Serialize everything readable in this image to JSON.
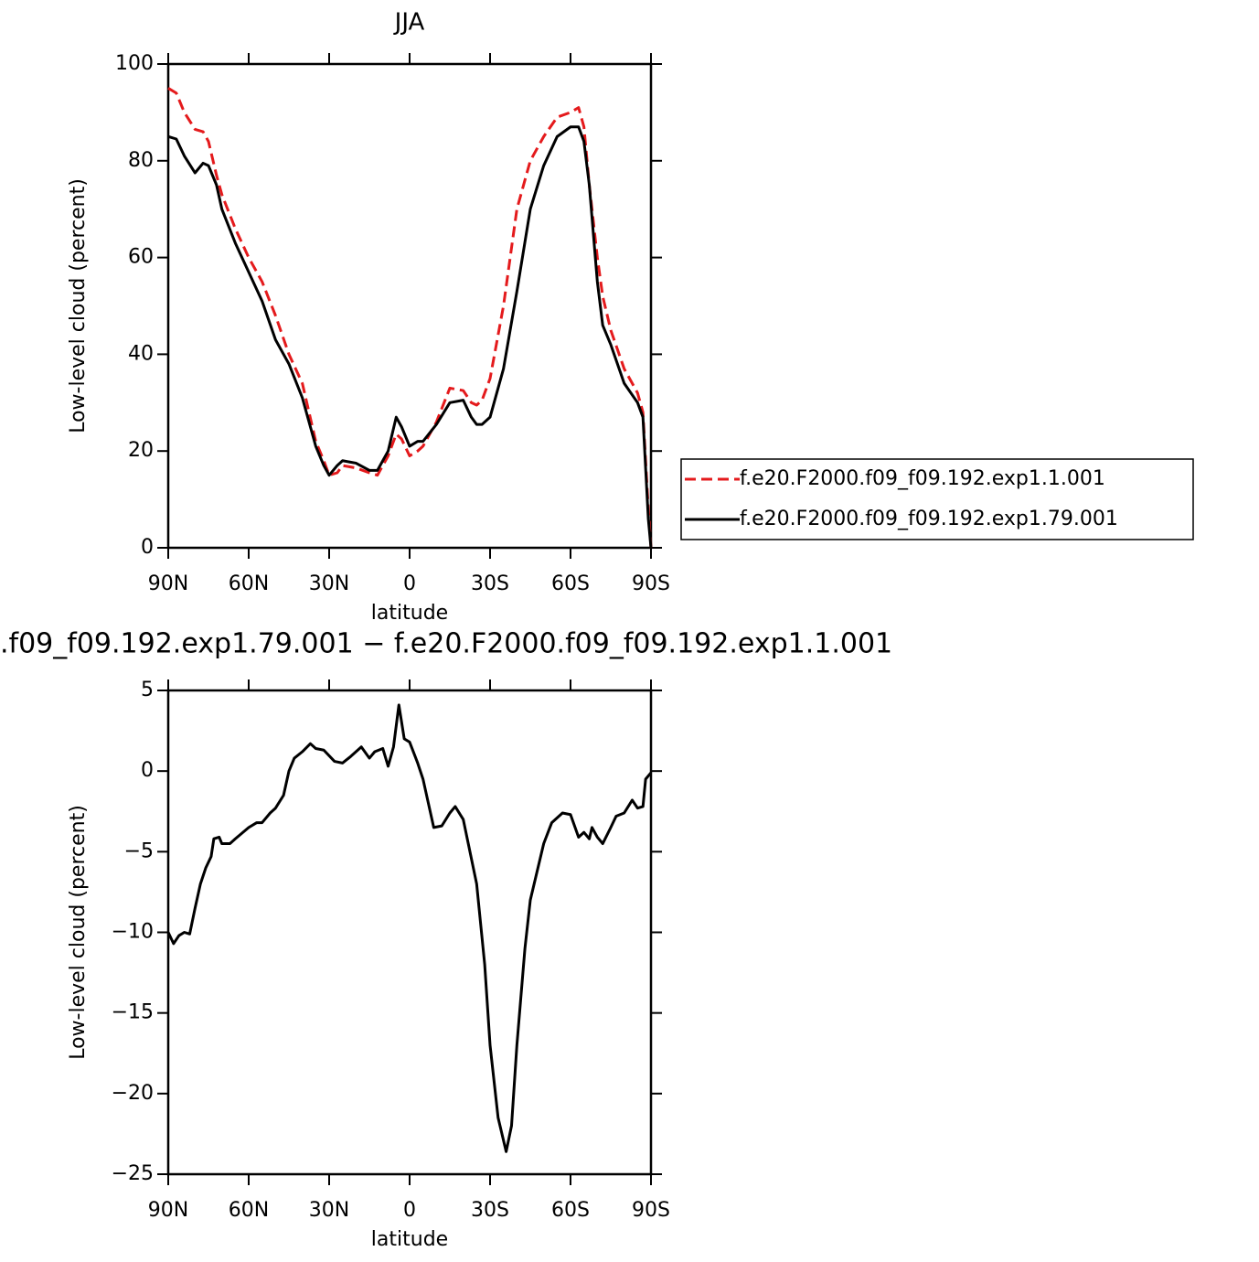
{
  "chart_data": [
    {
      "type": "line",
      "title": "JJA",
      "xlabel": "latitude",
      "ylabel": "Low-level cloud (percent)",
      "x": [
        90,
        87,
        84,
        80,
        77,
        75,
        72,
        70,
        65,
        60,
        55,
        50,
        45,
        40,
        35,
        32,
        30,
        27,
        25,
        20,
        15,
        12,
        8,
        5,
        3,
        0,
        -3,
        -5,
        -10,
        -15,
        -20,
        -23,
        -25,
        -27,
        -30,
        -35,
        -40,
        -45,
        -50,
        -55,
        -60,
        -63,
        -65,
        -67,
        -70,
        -72,
        -75,
        -80,
        -85,
        -87,
        -89,
        -90
      ],
      "series": [
        {
          "name": "f.e20.F2000.f09_f09.192.exp1.1.001",
          "color": "#e41a1c",
          "line_style": "dashed",
          "values": [
            95,
            94,
            90,
            86.5,
            86,
            84,
            77,
            73,
            66,
            60,
            55,
            48,
            40,
            34,
            22,
            18,
            15,
            15.5,
            17,
            16.5,
            15.5,
            15,
            19,
            23.5,
            22.5,
            19,
            20,
            21,
            26,
            33,
            32.5,
            30,
            29.5,
            30.5,
            35,
            50,
            70,
            80,
            85,
            89,
            90,
            91,
            87,
            75,
            60,
            52,
            45,
            37,
            32,
            28,
            8,
            0
          ]
        },
        {
          "name": "f.e20.F2000.f09_f09.192.exp1.79.001",
          "color": "#000000",
          "line_style": "solid",
          "values": [
            85,
            84.5,
            81,
            77.5,
            79.5,
            79,
            75,
            70,
            63,
            57,
            51,
            43,
            38,
            31,
            21,
            17,
            15,
            17,
            18,
            17.5,
            16,
            16,
            20,
            27,
            25,
            21,
            22,
            22,
            25.5,
            30,
            30.5,
            27,
            25.5,
            25.5,
            27,
            37,
            53,
            70,
            79,
            85,
            87,
            87,
            84,
            75,
            55,
            46,
            42,
            34,
            30,
            27,
            6,
            0
          ]
        }
      ],
      "xlim": [
        90,
        -90
      ],
      "xticks": [
        {
          "value": 90,
          "label": "90N"
        },
        {
          "value": 60,
          "label": "60N"
        },
        {
          "value": 30,
          "label": "30N"
        },
        0,
        {
          "value": -30,
          "label": "30S"
        },
        {
          "value": -60,
          "label": "60S"
        },
        {
          "value": -90,
          "label": "90S"
        }
      ],
      "ylim": [
        0,
        100
      ],
      "yticks": [
        0,
        20,
        40,
        60,
        80,
        100
      ],
      "legend": "outside-right"
    },
    {
      "type": "line",
      "title": ".f09_f09.192.exp1.79.001 − f.e20.F2000.f09_f09.192.exp1.1.001",
      "xlabel": "latitude",
      "ylabel": "Low-level cloud (percent)",
      "x": [
        90,
        88,
        86,
        84,
        82,
        80,
        78,
        76,
        74,
        73,
        71,
        70,
        67,
        65,
        60,
        57,
        55,
        52,
        50,
        47,
        45,
        43,
        40,
        37,
        35,
        32,
        28,
        25,
        22,
        20,
        18,
        15,
        13,
        10,
        8,
        6,
        4,
        2,
        0,
        -3,
        -5,
        -7,
        -9,
        -12,
        -15,
        -17,
        -20,
        -25,
        -28,
        -30,
        -33,
        -36,
        -38,
        -40,
        -43,
        -45,
        -50,
        -53,
        -57,
        -60,
        -63,
        -65,
        -67,
        -68,
        -70,
        -72,
        -75,
        -77,
        -80,
        -83,
        -85,
        -87,
        -88,
        -90
      ],
      "series": [
        {
          "color": "#000000",
          "line_style": "solid",
          "values": [
            -10,
            -10.7,
            -10.2,
            -10,
            -10.1,
            -8.5,
            -7,
            -6,
            -5.3,
            -4.2,
            -4.1,
            -4.5,
            -4.5,
            -4.2,
            -3.5,
            -3.2,
            -3.2,
            -2.6,
            -2.3,
            -1.5,
            0,
            0.8,
            1.2,
            1.7,
            1.4,
            1.3,
            0.6,
            0.5,
            0.9,
            1.2,
            1.5,
            0.8,
            1.2,
            1.4,
            0.3,
            1.5,
            4.1,
            2,
            1.8,
            0.5,
            -0.5,
            -2,
            -3.5,
            -3.4,
            -2.6,
            -2.2,
            -3,
            -7,
            -12,
            -17,
            -21.5,
            -23.6,
            -22,
            -17,
            -11,
            -8,
            -4.5,
            -3.2,
            -2.6,
            -2.7,
            -4.1,
            -3.8,
            -4.2,
            -3.5,
            -4.1,
            -4.5,
            -3.5,
            -2.8,
            -2.6,
            -1.8,
            -2.3,
            -2.2,
            -0.5,
            -0.1
          ]
        }
      ],
      "xlim": [
        90,
        -90
      ],
      "xticks": [
        {
          "value": 90,
          "label": "90N"
        },
        {
          "value": 60,
          "label": "60N"
        },
        {
          "value": 30,
          "label": "30N"
        },
        0,
        {
          "value": -30,
          "label": "30S"
        },
        {
          "value": -60,
          "label": "60S"
        },
        {
          "value": -90,
          "label": "90S"
        }
      ],
      "ylim": [
        -25,
        5
      ],
      "yticks": [
        {
          "value": -25,
          "label": "−25"
        },
        {
          "value": -20,
          "label": "−20"
        },
        {
          "value": -15,
          "label": "−15"
        },
        {
          "value": -10,
          "label": "−10"
        },
        {
          "value": -5,
          "label": "−5"
        },
        0,
        5
      ]
    }
  ]
}
